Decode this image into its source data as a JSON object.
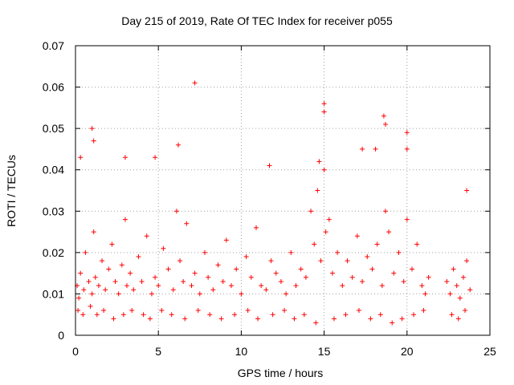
{
  "chart_data": {
    "type": "scatter",
    "title": "Day 215 of 2019, Rate Of TEC Index for receiver p055",
    "xlabel": "GPS time / hours",
    "ylabel": "ROTI / TECUs",
    "xlim": [
      0,
      25
    ],
    "ylim": [
      0,
      0.07
    ],
    "xticks": [
      0,
      5,
      10,
      15,
      20,
      25
    ],
    "xtick_labels": [
      "0",
      "5",
      "10",
      "15",
      "20",
      "25"
    ],
    "yticks": [
      0,
      0.01,
      0.02,
      0.03,
      0.04,
      0.05,
      0.06,
      0.07
    ],
    "ytick_labels": [
      "0",
      "0.01",
      "0.02",
      "0.03",
      "0.04",
      "0.05",
      "0.06",
      "0.07"
    ],
    "grid": true,
    "marker": "plus",
    "color": "#ff0000",
    "series": [
      {
        "name": "ROTI",
        "x": [
          0.1,
          0.2,
          0.3,
          0.5,
          0.6,
          0.8,
          1.0,
          1.1,
          1.2,
          1.4,
          1.6,
          1.8,
          2.0,
          2.2,
          2.4,
          2.6,
          2.8,
          3.0,
          3.1,
          3.3,
          3.5,
          3.8,
          4.0,
          4.3,
          4.6,
          4.8,
          5.0,
          5.3,
          5.6,
          5.9,
          6.1,
          6.3,
          6.5,
          6.7,
          7.0,
          7.2,
          7.5,
          7.8,
          8.0,
          8.3,
          8.6,
          8.9,
          9.1,
          9.4,
          9.7,
          10.0,
          10.3,
          10.6,
          10.9,
          11.2,
          11.5,
          11.8,
          12.1,
          12.4,
          12.7,
          13.0,
          13.3,
          13.6,
          13.9,
          14.2,
          14.4,
          14.6,
          14.8,
          15.0,
          15.1,
          15.3,
          15.5,
          15.8,
          16.1,
          16.4,
          16.7,
          17.0,
          17.3,
          17.6,
          17.9,
          18.2,
          18.5,
          18.7,
          18.9,
          19.2,
          19.5,
          19.8,
          20.0,
          20.3,
          20.6,
          20.9,
          21.1,
          21.3,
          22.4,
          22.6,
          22.8,
          23.0,
          23.2,
          23.4,
          23.6,
          23.8,
          0.3,
          1.0,
          1.1,
          3.0,
          4.8,
          6.2,
          7.2,
          11.7,
          14.7,
          15.0,
          15.0,
          17.3,
          18.1,
          18.6,
          18.7,
          20.0,
          20.0,
          23.6,
          0.15,
          0.45,
          0.9,
          1.3,
          1.7,
          2.3,
          2.9,
          3.4,
          4.1,
          4.5,
          5.2,
          5.8,
          6.6,
          7.4,
          8.1,
          8.8,
          9.6,
          10.4,
          11.0,
          11.9,
          12.6,
          13.2,
          13.8,
          14.5,
          15.6,
          16.3,
          17.1,
          17.8,
          18.4,
          19.1,
          19.7,
          20.4,
          21.0,
          22.7,
          23.1,
          23.5
        ],
        "y": [
          0.012,
          0.009,
          0.015,
          0.011,
          0.02,
          0.013,
          0.01,
          0.025,
          0.014,
          0.012,
          0.018,
          0.011,
          0.016,
          0.022,
          0.013,
          0.01,
          0.017,
          0.028,
          0.012,
          0.015,
          0.011,
          0.019,
          0.013,
          0.024,
          0.01,
          0.014,
          0.012,
          0.021,
          0.016,
          0.011,
          0.03,
          0.018,
          0.013,
          0.027,
          0.012,
          0.015,
          0.01,
          0.02,
          0.014,
          0.011,
          0.017,
          0.013,
          0.023,
          0.012,
          0.016,
          0.01,
          0.019,
          0.014,
          0.026,
          0.012,
          0.011,
          0.018,
          0.015,
          0.013,
          0.01,
          0.02,
          0.012,
          0.016,
          0.014,
          0.03,
          0.022,
          0.035,
          0.018,
          0.04,
          0.025,
          0.028,
          0.015,
          0.02,
          0.012,
          0.018,
          0.014,
          0.024,
          0.013,
          0.019,
          0.016,
          0.022,
          0.012,
          0.03,
          0.025,
          0.015,
          0.02,
          0.013,
          0.028,
          0.016,
          0.022,
          0.012,
          0.01,
          0.014,
          0.013,
          0.01,
          0.016,
          0.012,
          0.009,
          0.014,
          0.018,
          0.011,
          0.043,
          0.05,
          0.047,
          0.043,
          0.043,
          0.046,
          0.061,
          0.041,
          0.042,
          0.056,
          0.054,
          0.045,
          0.045,
          0.053,
          0.051,
          0.049,
          0.045,
          0.035,
          0.006,
          0.005,
          0.007,
          0.005,
          0.006,
          0.004,
          0.005,
          0.006,
          0.005,
          0.004,
          0.006,
          0.005,
          0.004,
          0.006,
          0.005,
          0.004,
          0.005,
          0.006,
          0.004,
          0.005,
          0.006,
          0.004,
          0.005,
          0.003,
          0.004,
          0.005,
          0.006,
          0.004,
          0.005,
          0.003,
          0.004,
          0.005,
          0.006,
          0.005,
          0.004,
          0.006
        ]
      }
    ]
  }
}
